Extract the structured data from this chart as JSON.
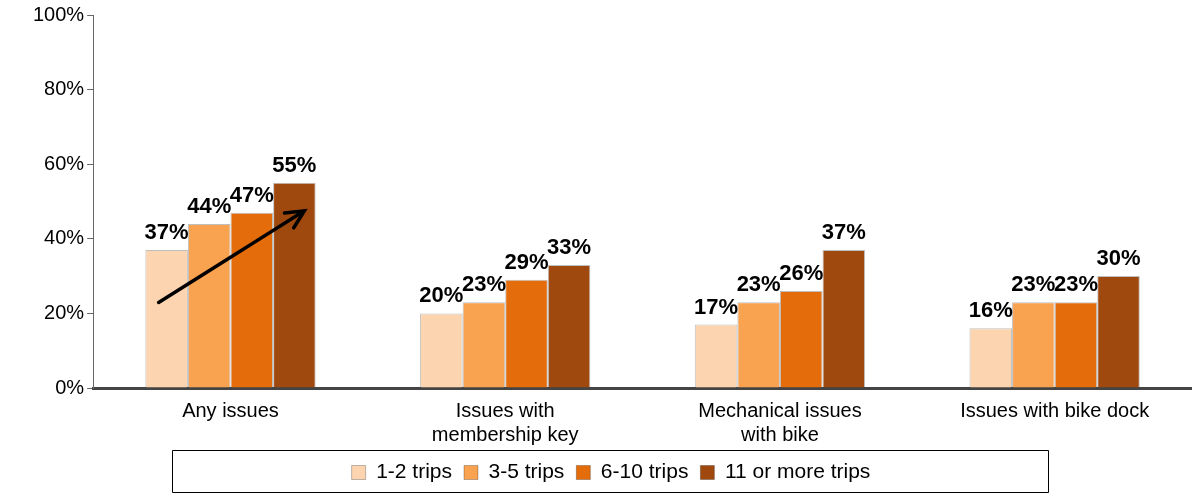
{
  "chart_data": {
    "type": "bar",
    "categories": [
      "Any issues",
      "Issues with\nmembership key",
      "Mechanical issues\nwith bike",
      "Issues with bike dock"
    ],
    "series": [
      {
        "name": "1-2 trips",
        "color": "#fcd5b0",
        "values": [
          37,
          20,
          17,
          16
        ],
        "value_labels": [
          "37%",
          "20%",
          "17%",
          "16%"
        ]
      },
      {
        "name": "3-5 trips",
        "color": "#f9a24f",
        "values": [
          44,
          23,
          23,
          23
        ],
        "value_labels": [
          "44%",
          "23%",
          "23%",
          "23%"
        ]
      },
      {
        "name": "6-10 trips",
        "color": "#e46c0a",
        "values": [
          47,
          29,
          26,
          23
        ],
        "value_labels": [
          "47%",
          "29%",
          "26%",
          "23%"
        ]
      },
      {
        "name": "11 or more trips",
        "color": "#a0490e",
        "values": [
          55,
          33,
          37,
          30
        ],
        "value_labels": [
          "55%",
          "33%",
          "37%",
          "30%"
        ]
      }
    ],
    "ylim": [
      0,
      100
    ],
    "yticks": [
      {
        "value": 0,
        "label": "0%"
      },
      {
        "value": 20,
        "label": "20%"
      },
      {
        "value": 40,
        "label": "40%"
      },
      {
        "value": 60,
        "label": "60%"
      },
      {
        "value": 80,
        "label": "80%"
      },
      {
        "value": 100,
        "label": "100%"
      }
    ],
    "legend": "bottom"
  }
}
